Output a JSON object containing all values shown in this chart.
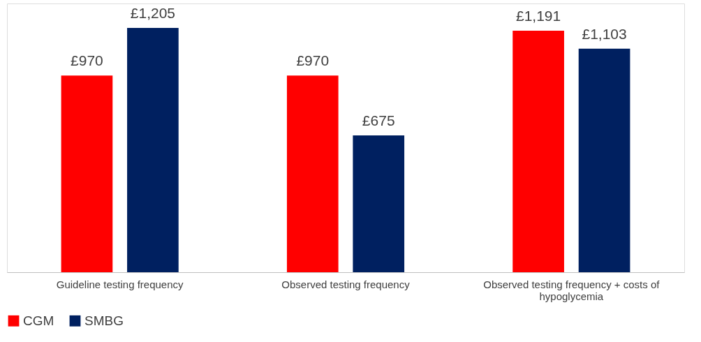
{
  "chart_data": {
    "type": "bar",
    "categories": [
      "Guideline testing frequency",
      "Observed testing frequency",
      "Observed testing frequency + costs of hypoglycemia"
    ],
    "series": [
      {
        "name": "CGM",
        "color": "#ff0000",
        "values": [
          970,
          970,
          1191
        ],
        "value_labels": [
          "£970",
          "£970",
          "£1,191"
        ]
      },
      {
        "name": "SMBG",
        "color": "#002060",
        "values": [
          1205,
          675,
          1103
        ],
        "value_labels": [
          "£1,205",
          "£675",
          "£1,103"
        ]
      }
    ],
    "legend": "bottom",
    "grid": false
  }
}
